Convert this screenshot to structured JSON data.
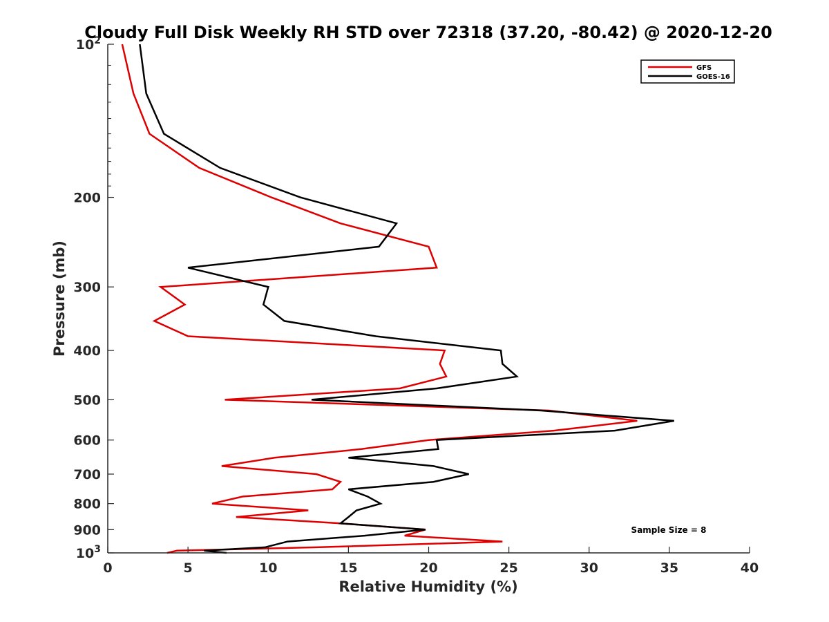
{
  "chart_data": {
    "type": "line",
    "title": "Cloudy Full Disk Weekly RH STD over 72318 (37.20, -80.42) @ 2020-12-20",
    "xlabel": "Relative Humidity (%)",
    "ylabel": "Pressure (mb)",
    "xlim": [
      0,
      40
    ],
    "ylim": [
      100,
      1000
    ],
    "yscale": "log",
    "y_reversed": true,
    "xticks": [
      0,
      5,
      10,
      15,
      20,
      25,
      30,
      35,
      40
    ],
    "xtick_labels": [
      "0",
      "5",
      "10",
      "15",
      "20",
      "25",
      "30",
      "35",
      "40"
    ],
    "yticks": [
      {
        "value": 100,
        "label": "10",
        "sup": "2"
      },
      {
        "value": 200,
        "label": "200",
        "sup": ""
      },
      {
        "value": 300,
        "label": "300",
        "sup": ""
      },
      {
        "value": 400,
        "label": "400",
        "sup": ""
      },
      {
        "value": 500,
        "label": "500",
        "sup": ""
      },
      {
        "value": 600,
        "label": "600",
        "sup": ""
      },
      {
        "value": 700,
        "label": "700",
        "sup": ""
      },
      {
        "value": 800,
        "label": "800",
        "sup": ""
      },
      {
        "value": 900,
        "label": "900",
        "sup": ""
      },
      {
        "value": 1000,
        "label": "10",
        "sup": "3"
      }
    ],
    "legend_position": "top-right",
    "annotation": "Sample Size = 8",
    "series": [
      {
        "name": "GFS",
        "color": "#dd0000",
        "points": [
          [
            0.9,
            100
          ],
          [
            1.6,
            125
          ],
          [
            2.6,
            150
          ],
          [
            5.7,
            175
          ],
          [
            10.2,
            200
          ],
          [
            14.5,
            225
          ],
          [
            20.0,
            250
          ],
          [
            20.5,
            275
          ],
          [
            3.3,
            300
          ],
          [
            4.8,
            325
          ],
          [
            2.9,
            350
          ],
          [
            5.0,
            375
          ],
          [
            21.0,
            400
          ],
          [
            20.7,
            425
          ],
          [
            21.1,
            450
          ],
          [
            18.2,
            475
          ],
          [
            7.3,
            500
          ],
          [
            27.5,
            525
          ],
          [
            33.0,
            550
          ],
          [
            27.8,
            575
          ],
          [
            20.0,
            600
          ],
          [
            15.8,
            625
          ],
          [
            10.4,
            650
          ],
          [
            7.1,
            675
          ],
          [
            13.0,
            700
          ],
          [
            14.5,
            725
          ],
          [
            14.0,
            750
          ],
          [
            8.4,
            775
          ],
          [
            6.5,
            800
          ],
          [
            12.5,
            825
          ],
          [
            8.0,
            850
          ],
          [
            14.5,
            875
          ],
          [
            19.8,
            900
          ],
          [
            18.5,
            925
          ],
          [
            24.6,
            950
          ],
          [
            13.0,
            975
          ],
          [
            4.3,
            990
          ],
          [
            3.7,
            1000
          ]
        ]
      },
      {
        "name": "GOES-16",
        "color": "#000000",
        "points": [
          [
            2.0,
            100
          ],
          [
            2.4,
            125
          ],
          [
            3.5,
            150
          ],
          [
            7.0,
            175
          ],
          [
            12.0,
            200
          ],
          [
            18.0,
            225
          ],
          [
            16.9,
            250
          ],
          [
            5.0,
            275
          ],
          [
            10.0,
            300
          ],
          [
            9.7,
            325
          ],
          [
            11.0,
            350
          ],
          [
            16.7,
            375
          ],
          [
            24.5,
            400
          ],
          [
            24.6,
            425
          ],
          [
            25.5,
            450
          ],
          [
            20.5,
            475
          ],
          [
            12.7,
            500
          ],
          [
            27.0,
            525
          ],
          [
            35.3,
            550
          ],
          [
            31.6,
            575
          ],
          [
            20.5,
            600
          ],
          [
            20.6,
            625
          ],
          [
            15.0,
            650
          ],
          [
            20.3,
            675
          ],
          [
            22.5,
            700
          ],
          [
            20.3,
            725
          ],
          [
            15.0,
            750
          ],
          [
            16.2,
            775
          ],
          [
            17.0,
            800
          ],
          [
            15.5,
            825
          ],
          [
            15.0,
            850
          ],
          [
            14.5,
            875
          ],
          [
            19.8,
            900
          ],
          [
            16.0,
            925
          ],
          [
            11.2,
            950
          ],
          [
            9.8,
            975
          ],
          [
            6.0,
            990
          ],
          [
            7.4,
            1000
          ]
        ]
      }
    ]
  }
}
